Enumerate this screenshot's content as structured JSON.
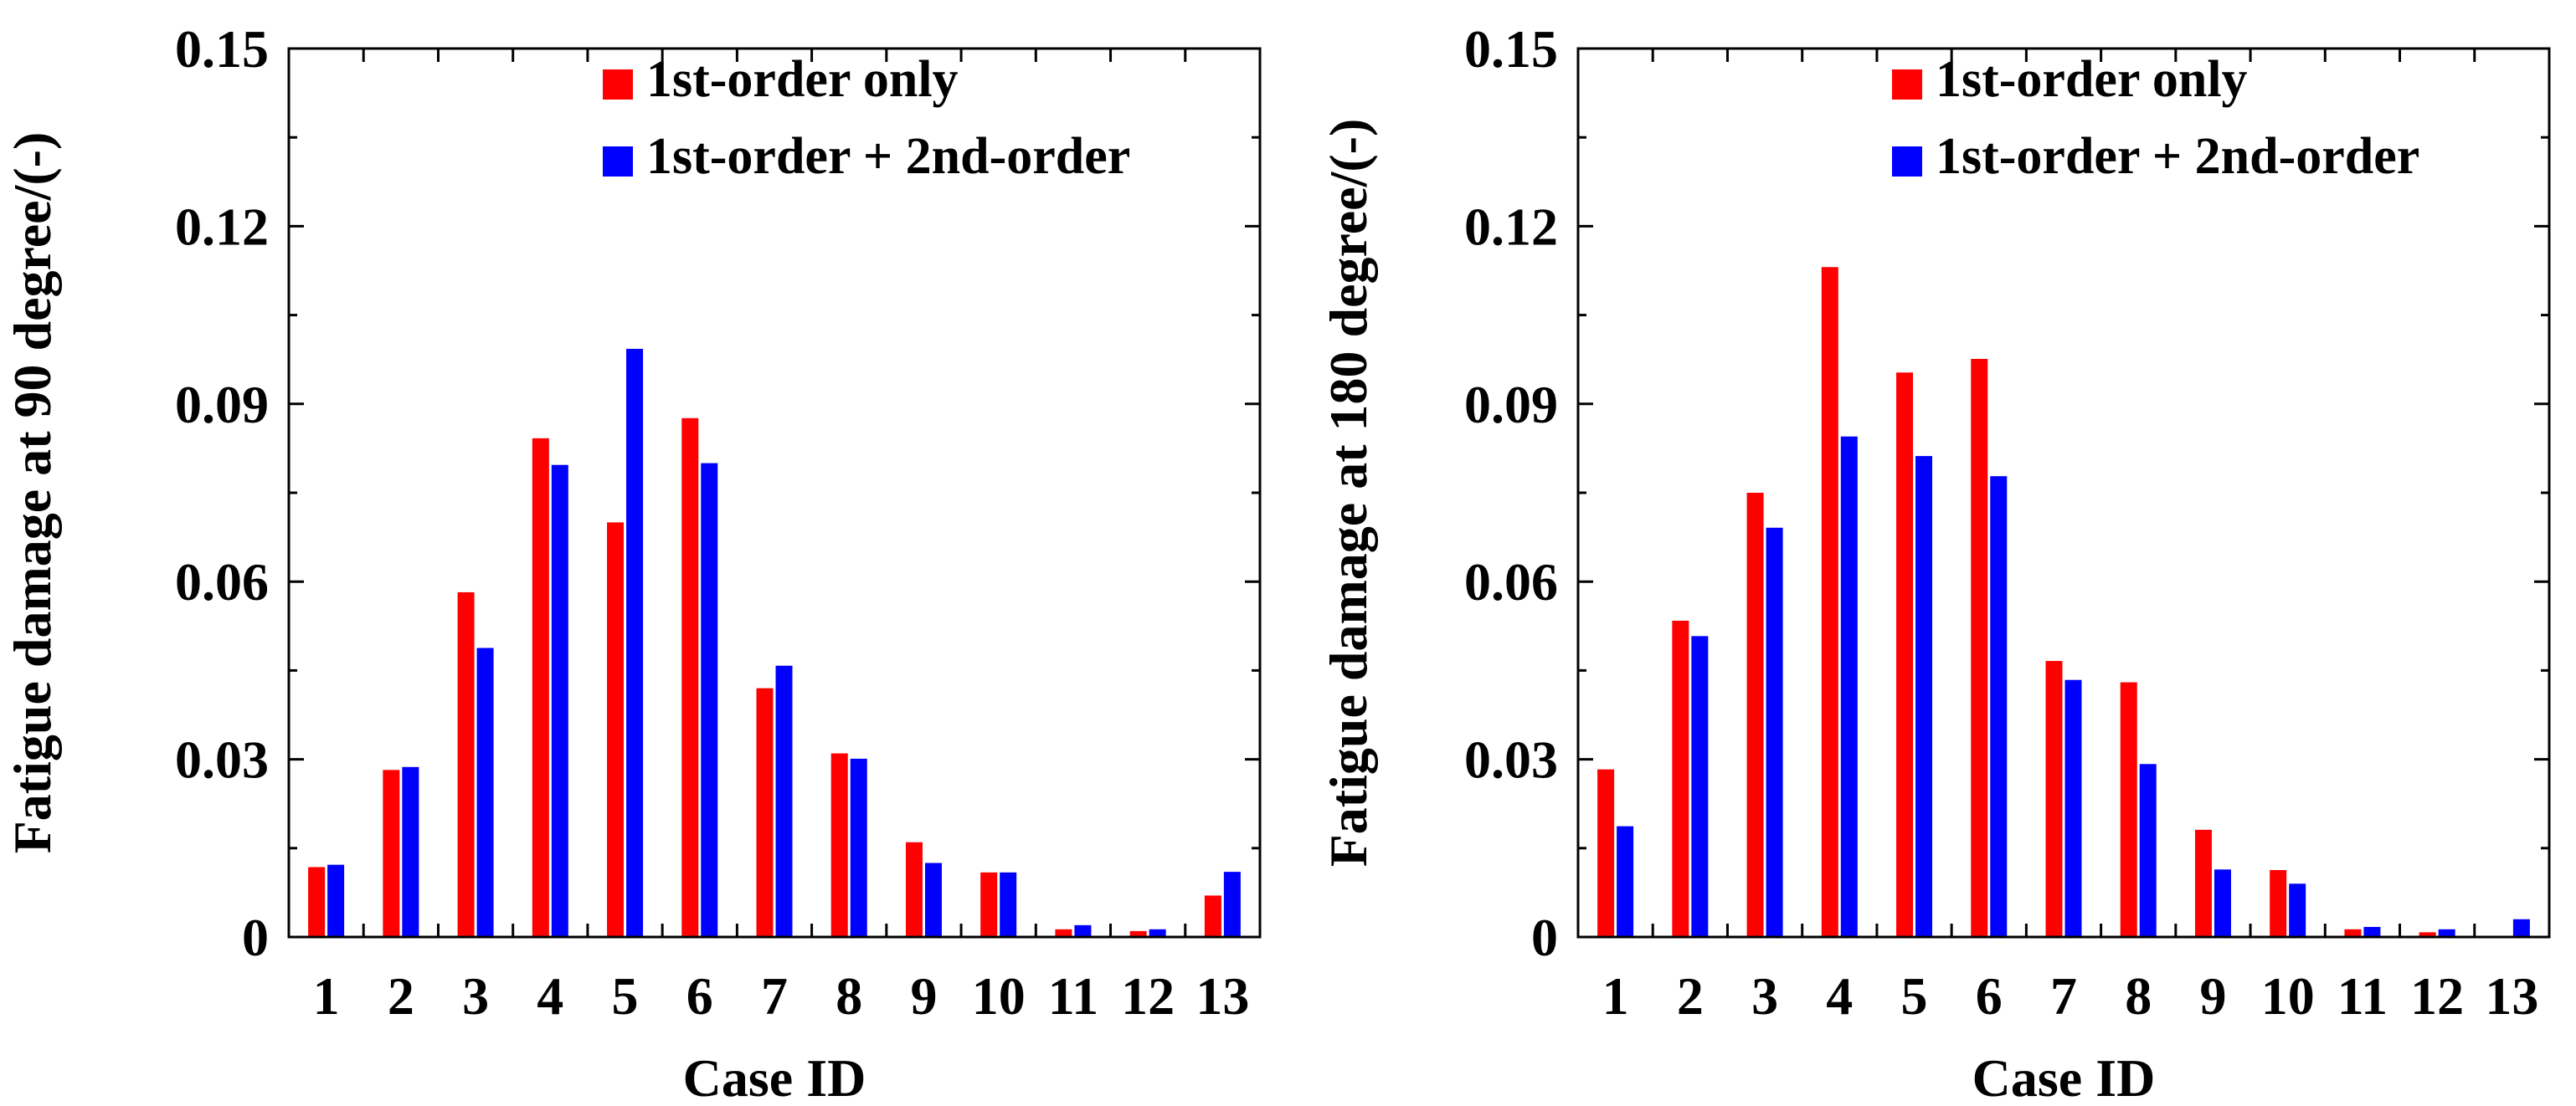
{
  "chart_data": [
    {
      "type": "bar",
      "xlabel": "Case ID",
      "ylabel": "Fatigue damage at 90 degree/(-)",
      "ylim": [
        0,
        0.15
      ],
      "yticks": [
        "0",
        "0.03",
        "0.06",
        "0.09",
        "0.12",
        "0.15"
      ],
      "categories": [
        "1",
        "2",
        "3",
        "4",
        "5",
        "6",
        "7",
        "8",
        "9",
        "10",
        "11",
        "12",
        "13"
      ],
      "legend_position": "top-right",
      "series": [
        {
          "name": "1st-order only",
          "color": "#ff0000",
          "values": [
            0.0118,
            0.0282,
            0.0582,
            0.0842,
            0.07,
            0.0876,
            0.042,
            0.031,
            0.016,
            0.0109,
            0.0013,
            0.001,
            0.007
          ]
        },
        {
          "name": "1st-order + 2nd-order",
          "color": "#0000ff",
          "values": [
            0.0122,
            0.0287,
            0.0488,
            0.0797,
            0.0993,
            0.08,
            0.0458,
            0.0301,
            0.0125,
            0.0109,
            0.002,
            0.0013,
            0.011
          ]
        }
      ]
    },
    {
      "type": "bar",
      "xlabel": "Case ID",
      "ylabel": "Fatigue damage at 180 degree/(-)",
      "ylim": [
        0,
        0.15
      ],
      "yticks": [
        "0",
        "0.03",
        "0.06",
        "0.09",
        "0.12",
        "0.15"
      ],
      "categories": [
        "1",
        "2",
        "3",
        "4",
        "5",
        "6",
        "7",
        "8",
        "9",
        "10",
        "11",
        "12",
        "13"
      ],
      "legend_position": "top-right",
      "series": [
        {
          "name": "1st-order only",
          "color": "#ff0000",
          "values": [
            0.0283,
            0.0534,
            0.075,
            0.1131,
            0.0953,
            0.0976,
            0.0466,
            0.043,
            0.0181,
            0.0113,
            0.0013,
            0.0008,
            0.0
          ]
        },
        {
          "name": "1st-order + 2nd-order",
          "color": "#0000ff",
          "values": [
            0.0187,
            0.0508,
            0.0691,
            0.0845,
            0.0812,
            0.0778,
            0.0434,
            0.0292,
            0.0114,
            0.009,
            0.0017,
            0.0013,
            0.003
          ]
        }
      ]
    }
  ]
}
